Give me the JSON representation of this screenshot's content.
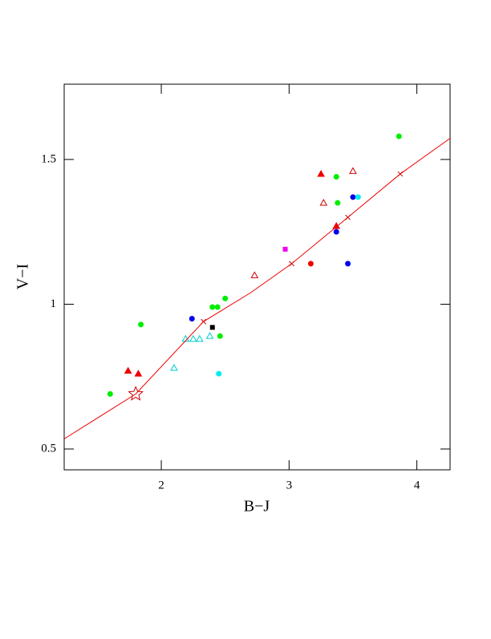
{
  "chart_data": {
    "type": "scatter",
    "xlabel": "B−J",
    "ylabel": "V−I",
    "xlim": [
      1.24,
      4.26
    ],
    "ylim": [
      0.428,
      1.76
    ],
    "xticks": [
      2,
      3,
      4
    ],
    "yticks": [
      0.5,
      1,
      1.5
    ],
    "series": [
      {
        "marker": "circle",
        "color": "#00ee00",
        "x": [
          1.6,
          1.84,
          2.4,
          2.44,
          2.5,
          2.46,
          3.37,
          3.38,
          3.86
        ],
        "values": [
          0.69,
          0.93,
          0.99,
          0.99,
          1.02,
          0.89,
          1.44,
          1.35,
          1.58
        ]
      },
      {
        "marker": "circle",
        "color": "#0000ee",
        "x": [
          2.24,
          3.37,
          3.5,
          3.46
        ],
        "values": [
          0.95,
          1.25,
          1.37,
          1.14
        ]
      },
      {
        "marker": "circle",
        "color": "#00eeee",
        "x": [
          2.45,
          3.54
        ],
        "values": [
          0.76,
          1.37
        ]
      },
      {
        "marker": "circle",
        "color": "#ee0000",
        "x": [
          3.17
        ],
        "values": [
          1.14
        ]
      },
      {
        "marker": "triangle",
        "color": "#ee0000",
        "x": [
          1.74,
          1.82,
          3.25,
          3.37
        ],
        "values": [
          0.77,
          0.76,
          1.45,
          1.27
        ]
      },
      {
        "marker": "open-triangle",
        "color": "#cc0000",
        "x": [
          2.73,
          3.27,
          3.5
        ],
        "values": [
          1.1,
          1.35,
          1.46
        ]
      },
      {
        "marker": "open-triangle",
        "color": "#00cccc",
        "x": [
          2.1,
          2.19,
          2.25,
          2.3,
          2.38
        ],
        "values": [
          0.78,
          0.88,
          0.88,
          0.88,
          0.89
        ]
      },
      {
        "marker": "square",
        "color": "#ee00ee",
        "x": [
          2.97
        ],
        "values": [
          1.19
        ]
      },
      {
        "marker": "square",
        "color": "#000000",
        "x": [
          2.4
        ],
        "values": [
          0.92
        ]
      },
      {
        "marker": "cross",
        "color": "#cc0000",
        "x": [
          2.33,
          3.02,
          3.46,
          3.87
        ],
        "values": [
          0.94,
          1.14,
          1.3,
          1.45
        ]
      },
      {
        "marker": "star",
        "color": "#cc0000",
        "x": [
          1.8
        ],
        "values": [
          0.69
        ]
      },
      {
        "marker": "line",
        "color": "#ee0000",
        "x": [
          1.24,
          1.8,
          2.33,
          2.7,
          3.02,
          3.46,
          3.87,
          4.26
        ],
        "values": [
          0.535,
          0.69,
          0.94,
          1.04,
          1.14,
          1.3,
          1.45,
          1.573
        ]
      }
    ]
  }
}
